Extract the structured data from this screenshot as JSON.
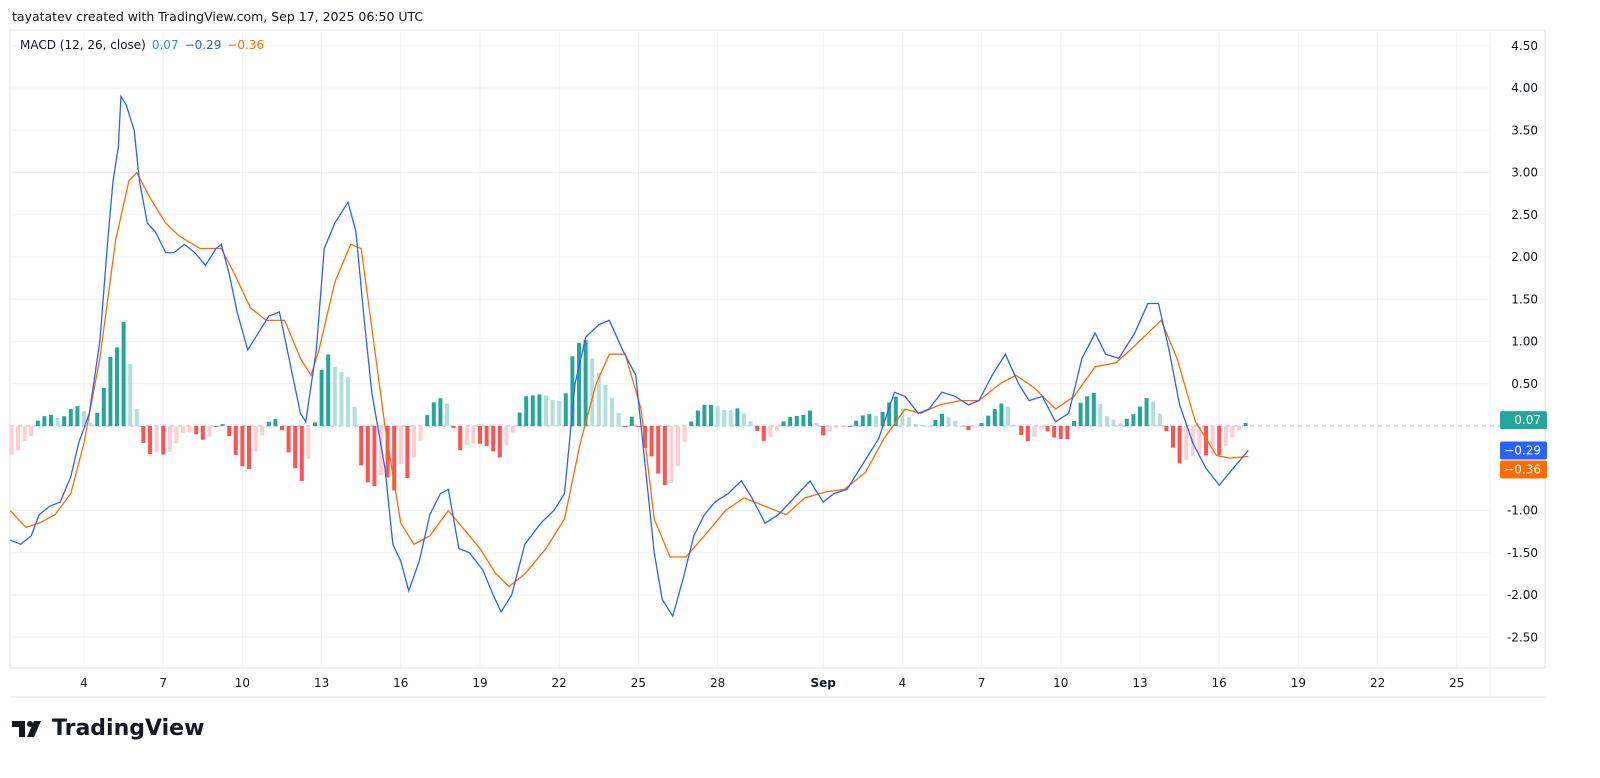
{
  "header": "tayatatev created with TradingView.com, Sep 17, 2025 06:50 UTC",
  "legend": {
    "name": "MACD (12, 26, close)",
    "hist": "0.07",
    "macd": "−0.29",
    "signal": "−0.36"
  },
  "logo_text": "TradingView",
  "colors": {
    "macd": "#2962ff",
    "signal": "#ff6d00",
    "hist_up_strong": "#26a69a",
    "hist_up_weak": "#b2dfdb",
    "hist_dn_strong": "#ff5252",
    "hist_dn_weak": "#ffcdd2"
  },
  "chart_data": {
    "type": "line",
    "title": "MACD (12, 26, close)",
    "x_unit": "day (Aug 1 = 1, Sep 1 = 32)",
    "ylim": [
      -2.9,
      4.7
    ],
    "y_ticks": [
      "4.50",
      "4.00",
      "3.50",
      "3.00",
      "2.50",
      "2.00",
      "1.50",
      "1.00",
      "0.50",
      "-1.00",
      "-1.50",
      "-2.00",
      "-2.50"
    ],
    "y_tick_values": [
      4.5,
      4,
      3.5,
      3,
      2.5,
      2,
      1.5,
      1,
      0.5,
      -1,
      -1.5,
      -2,
      -2.5
    ],
    "x_ticks": [
      {
        "d": 4,
        "l": "4"
      },
      {
        "d": 7,
        "l": "7"
      },
      {
        "d": 10,
        "l": "10"
      },
      {
        "d": 13,
        "l": "13"
      },
      {
        "d": 16,
        "l": "16"
      },
      {
        "d": 19,
        "l": "19"
      },
      {
        "d": 22,
        "l": "22"
      },
      {
        "d": 25,
        "l": "25"
      },
      {
        "d": 28,
        "l": "28"
      },
      {
        "d": 32,
        "l": "Sep"
      },
      {
        "d": 35,
        "l": "4"
      },
      {
        "d": 38,
        "l": "7"
      },
      {
        "d": 41,
        "l": "10"
      },
      {
        "d": 44,
        "l": "13"
      },
      {
        "d": 47,
        "l": "16"
      },
      {
        "d": 50,
        "l": "19"
      },
      {
        "d": 53,
        "l": "22"
      },
      {
        "d": 56,
        "l": "25"
      }
    ],
    "last_values": {
      "hist": "0.07",
      "macd": "−0.29",
      "signal": "−0.36",
      "hist_v": 0.07,
      "macd_v": -0.29,
      "signal_v": -0.36
    },
    "series": [
      {
        "name": "MACD",
        "points": [
          [
            1.2,
            -1.35
          ],
          [
            1.6,
            -1.4
          ],
          [
            2.0,
            -1.3
          ],
          [
            2.3,
            -1.05
          ],
          [
            2.7,
            -0.95
          ],
          [
            3.1,
            -0.9
          ],
          [
            3.5,
            -0.6
          ],
          [
            3.8,
            -0.2
          ],
          [
            4.2,
            0.15
          ],
          [
            4.6,
            1.0
          ],
          [
            4.9,
            2.2
          ],
          [
            5.1,
            2.9
          ],
          [
            5.3,
            3.3
          ],
          [
            5.4,
            3.9
          ],
          [
            5.6,
            3.8
          ],
          [
            5.9,
            3.5
          ],
          [
            6.1,
            2.9
          ],
          [
            6.4,
            2.4
          ],
          [
            6.7,
            2.3
          ],
          [
            7.1,
            2.05
          ],
          [
            7.4,
            2.05
          ],
          [
            7.8,
            2.15
          ],
          [
            8.2,
            2.05
          ],
          [
            8.6,
            1.9
          ],
          [
            9.0,
            2.1
          ],
          [
            9.2,
            2.15
          ],
          [
            9.5,
            1.8
          ],
          [
            9.8,
            1.35
          ],
          [
            10.2,
            0.9
          ],
          [
            10.6,
            1.1
          ],
          [
            11.0,
            1.3
          ],
          [
            11.4,
            1.35
          ],
          [
            11.8,
            0.75
          ],
          [
            12.2,
            0.15
          ],
          [
            12.4,
            0.05
          ],
          [
            12.8,
            0.9
          ],
          [
            13.1,
            2.1
          ],
          [
            13.5,
            2.4
          ],
          [
            14.0,
            2.65
          ],
          [
            14.3,
            2.3
          ],
          [
            14.6,
            1.3
          ],
          [
            14.9,
            0.4
          ],
          [
            15.4,
            -0.5
          ],
          [
            15.7,
            -1.4
          ],
          [
            16.0,
            -1.6
          ],
          [
            16.3,
            -1.95
          ],
          [
            16.7,
            -1.6
          ],
          [
            17.1,
            -1.05
          ],
          [
            17.5,
            -0.8
          ],
          [
            17.8,
            -0.75
          ],
          [
            18.2,
            -1.45
          ],
          [
            18.6,
            -1.5
          ],
          [
            19.1,
            -1.7
          ],
          [
            19.5,
            -2.0
          ],
          [
            19.8,
            -2.2
          ],
          [
            20.2,
            -2.0
          ],
          [
            20.7,
            -1.4
          ],
          [
            21.3,
            -1.15
          ],
          [
            21.8,
            -1.0
          ],
          [
            22.2,
            -0.8
          ],
          [
            22.6,
            0.5
          ],
          [
            23.0,
            1.05
          ],
          [
            23.5,
            1.2
          ],
          [
            23.9,
            1.25
          ],
          [
            24.4,
            0.9
          ],
          [
            24.9,
            0.6
          ],
          [
            25.3,
            -0.6
          ],
          [
            25.6,
            -1.5
          ],
          [
            25.9,
            -2.05
          ],
          [
            26.3,
            -2.25
          ],
          [
            26.7,
            -1.8
          ],
          [
            27.1,
            -1.3
          ],
          [
            27.5,
            -1.05
          ],
          [
            27.9,
            -0.9
          ],
          [
            28.4,
            -0.8
          ],
          [
            28.9,
            -0.65
          ],
          [
            29.3,
            -0.85
          ],
          [
            29.8,
            -1.15
          ],
          [
            30.3,
            -1.05
          ],
          [
            30.9,
            -0.85
          ],
          [
            31.5,
            -0.65
          ],
          [
            32.0,
            -0.9
          ],
          [
            32.4,
            -0.8
          ],
          [
            32.9,
            -0.75
          ],
          [
            33.4,
            -0.5
          ],
          [
            34.1,
            -0.15
          ],
          [
            34.7,
            0.4
          ],
          [
            35.1,
            0.35
          ],
          [
            35.6,
            0.15
          ],
          [
            36.0,
            0.2
          ],
          [
            36.5,
            0.4
          ],
          [
            37.0,
            0.35
          ],
          [
            37.5,
            0.25
          ],
          [
            37.9,
            0.3
          ],
          [
            38.4,
            0.6
          ],
          [
            38.9,
            0.85
          ],
          [
            39.4,
            0.5
          ],
          [
            39.8,
            0.3
          ],
          [
            40.3,
            0.35
          ],
          [
            40.8,
            0.05
          ],
          [
            41.3,
            0.15
          ],
          [
            41.8,
            0.8
          ],
          [
            42.3,
            1.1
          ],
          [
            42.7,
            0.85
          ],
          [
            43.2,
            0.8
          ],
          [
            43.8,
            1.1
          ],
          [
            44.3,
            1.45
          ],
          [
            44.7,
            1.45
          ],
          [
            45.1,
            0.9
          ],
          [
            45.5,
            0.25
          ],
          [
            46.0,
            -0.2
          ],
          [
            46.5,
            -0.5
          ],
          [
            47.0,
            -0.7
          ],
          [
            47.4,
            -0.55
          ],
          [
            48.1,
            -0.29
          ]
        ]
      },
      {
        "name": "Signal",
        "points": [
          [
            1.2,
            -1.0
          ],
          [
            1.8,
            -1.2
          ],
          [
            2.3,
            -1.15
          ],
          [
            2.9,
            -1.05
          ],
          [
            3.5,
            -0.8
          ],
          [
            4.0,
            -0.2
          ],
          [
            4.6,
            0.8
          ],
          [
            5.2,
            2.2
          ],
          [
            5.7,
            2.9
          ],
          [
            6.0,
            3.0
          ],
          [
            6.5,
            2.7
          ],
          [
            7.1,
            2.4
          ],
          [
            7.6,
            2.25
          ],
          [
            8.4,
            2.1
          ],
          [
            9.2,
            2.1
          ],
          [
            9.7,
            1.8
          ],
          [
            10.3,
            1.4
          ],
          [
            10.9,
            1.25
          ],
          [
            11.6,
            1.25
          ],
          [
            12.2,
            0.8
          ],
          [
            12.6,
            0.6
          ],
          [
            12.9,
            0.9
          ],
          [
            13.5,
            1.7
          ],
          [
            14.1,
            2.15
          ],
          [
            14.5,
            2.1
          ],
          [
            14.8,
            1.4
          ],
          [
            15.4,
            0.0
          ],
          [
            16.0,
            -1.15
          ],
          [
            16.5,
            -1.4
          ],
          [
            17.1,
            -1.3
          ],
          [
            17.8,
            -1.0
          ],
          [
            18.2,
            -1.15
          ],
          [
            19.0,
            -1.45
          ],
          [
            19.6,
            -1.75
          ],
          [
            20.1,
            -1.9
          ],
          [
            20.7,
            -1.75
          ],
          [
            21.5,
            -1.45
          ],
          [
            22.2,
            -1.1
          ],
          [
            22.8,
            -0.2
          ],
          [
            23.4,
            0.5
          ],
          [
            23.9,
            0.85
          ],
          [
            24.5,
            0.85
          ],
          [
            25.1,
            0.2
          ],
          [
            25.6,
            -1.1
          ],
          [
            26.2,
            -1.55
          ],
          [
            26.8,
            -1.55
          ],
          [
            27.5,
            -1.3
          ],
          [
            28.3,
            -1.0
          ],
          [
            29.0,
            -0.85
          ],
          [
            29.8,
            -0.95
          ],
          [
            30.6,
            -1.05
          ],
          [
            31.3,
            -0.85
          ],
          [
            32.1,
            -0.78
          ],
          [
            32.8,
            -0.75
          ],
          [
            33.6,
            -0.55
          ],
          [
            34.3,
            -0.15
          ],
          [
            35.1,
            0.2
          ],
          [
            35.7,
            0.15
          ],
          [
            36.4,
            0.25
          ],
          [
            37.2,
            0.3
          ],
          [
            37.9,
            0.3
          ],
          [
            38.7,
            0.5
          ],
          [
            39.3,
            0.6
          ],
          [
            40.0,
            0.45
          ],
          [
            40.8,
            0.2
          ],
          [
            41.5,
            0.35
          ],
          [
            42.3,
            0.7
          ],
          [
            43.1,
            0.75
          ],
          [
            43.8,
            0.95
          ],
          [
            44.8,
            1.25
          ],
          [
            45.4,
            0.8
          ],
          [
            46.1,
            0.05
          ],
          [
            46.9,
            -0.35
          ],
          [
            47.4,
            -0.38
          ],
          [
            48.1,
            -0.36
          ]
        ]
      }
    ]
  }
}
